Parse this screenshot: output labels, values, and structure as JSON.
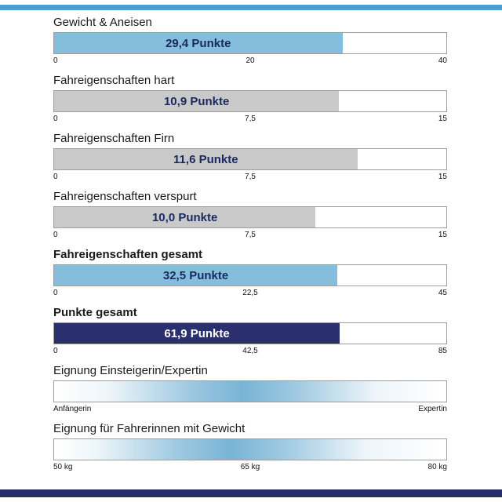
{
  "page": {
    "top_strip_color": "#4b9fd1",
    "bottom_strip_color": "#272d69"
  },
  "chart_data": {
    "type": "bar",
    "title": "",
    "bars": [
      {
        "label": "Gewicht & Aneisen",
        "value": 29.4,
        "max": 40,
        "display": "29,4 Punkte",
        "ticks": [
          "0",
          "20",
          "40"
        ],
        "color": "#85bedd",
        "text_color": "#1b2a5e"
      },
      {
        "label": "Fahreigenschaften hart",
        "value": 10.9,
        "max": 15,
        "display": "10,9 Punkte",
        "ticks": [
          "0",
          "7,5",
          "15"
        ],
        "color": "#c9c9c9",
        "text_color": "#1b2a5e"
      },
      {
        "label": "Fahreigenschaften Firn",
        "value": 11.6,
        "max": 15,
        "display": "11,6 Punkte",
        "ticks": [
          "0",
          "7,5",
          "15"
        ],
        "color": "#c9c9c9",
        "text_color": "#1b2a5e"
      },
      {
        "label": "Fahreigenschaften verspurt",
        "value": 10.0,
        "max": 15,
        "display": "10,0 Punkte",
        "ticks": [
          "0",
          "7,5",
          "15"
        ],
        "color": "#c9c9c9",
        "text_color": "#1b2a5e"
      },
      {
        "label": "Fahreigenschaften gesamt",
        "value": 32.5,
        "max": 45,
        "display": "32,5 Punkte",
        "ticks": [
          "0",
          "22,5",
          "45"
        ],
        "color": "#85bedd",
        "text_color": "#1b2a5e"
      },
      {
        "label": "Punkte gesamt",
        "value": 61.9,
        "max": 85,
        "display": "61,9 Punkte",
        "ticks": [
          "0",
          "42,5",
          "85"
        ],
        "color": "#2a2f6e",
        "text_color": "#ffffff"
      }
    ],
    "gradients": [
      {
        "label": "Eignung Einsteigerin/Expertin",
        "ticks": [
          "Anfängerin",
          "",
          "Expertin"
        ],
        "center_percent": 48,
        "color": "#79b4d6"
      },
      {
        "label": "Eignung für Fahrerinnen mit Gewicht",
        "ticks": [
          "50 kg",
          "65 kg",
          "80 kg"
        ],
        "center_percent": 45,
        "color": "#79b4d6"
      }
    ]
  }
}
